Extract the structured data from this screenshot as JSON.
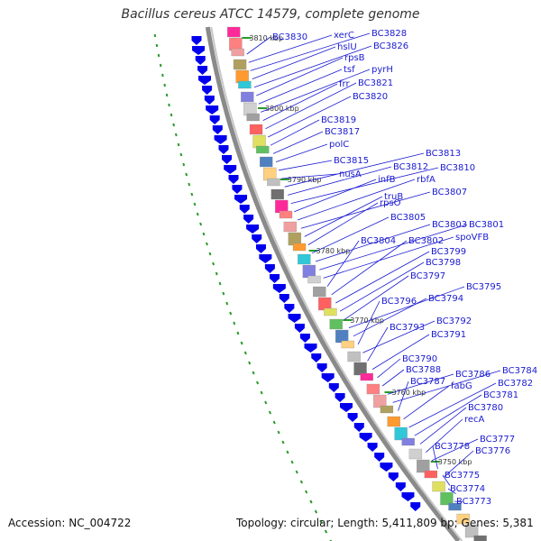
{
  "title": "Bacillus cereus ATCC 14579, complete genome",
  "footer": {
    "accession_label": "Accession:",
    "accession": "NC_004722",
    "topology_label": "Topology:",
    "topology": "circular;",
    "length_label": "Length:",
    "length": "5,411,809 bp;",
    "genes_label": "Genes:",
    "genes": "5,381"
  },
  "colors": {
    "arrow": "#0000ee",
    "backbone": "#8a8a8a",
    "dots": "#2a9a2a",
    "label": "#1a1ad0"
  },
  "kbp_ticks": [
    "3810 kbp",
    "3800 kbp",
    "3790 kbp",
    "3780 kbp",
    "3770 kbp",
    "3760 kbp",
    "3750 kbp"
  ],
  "gene_labels": [
    "BC3830",
    "xerC",
    "BC3828",
    "hslU",
    "BC3826",
    "rpsB",
    "tsf",
    "pyrH",
    "frr",
    "BC3821",
    "BC3820",
    "BC3819",
    "BC3817",
    "polC",
    "BC3815",
    "nusA",
    "BC3813",
    "BC3812",
    "BC3810",
    "infB",
    "rbfA",
    "BC3807",
    "truB",
    "rpsO",
    "BC3805",
    "BC3803",
    "BC3801",
    "spoVFB",
    "BC3804",
    "BC3802",
    "BC3799",
    "BC3798",
    "BC3797",
    "BC3795",
    "BC3794",
    "BC3796",
    "BC3792",
    "BC3793",
    "BC3791",
    "BC3790",
    "BC3788",
    "BC3786",
    "BC3784",
    "BC3787",
    "fabG",
    "BC3782",
    "BC3781",
    "BC3780",
    "recA",
    "BC3777",
    "BC3778",
    "BC3776",
    "BC3775",
    "BC3774",
    "BC3773"
  ]
}
